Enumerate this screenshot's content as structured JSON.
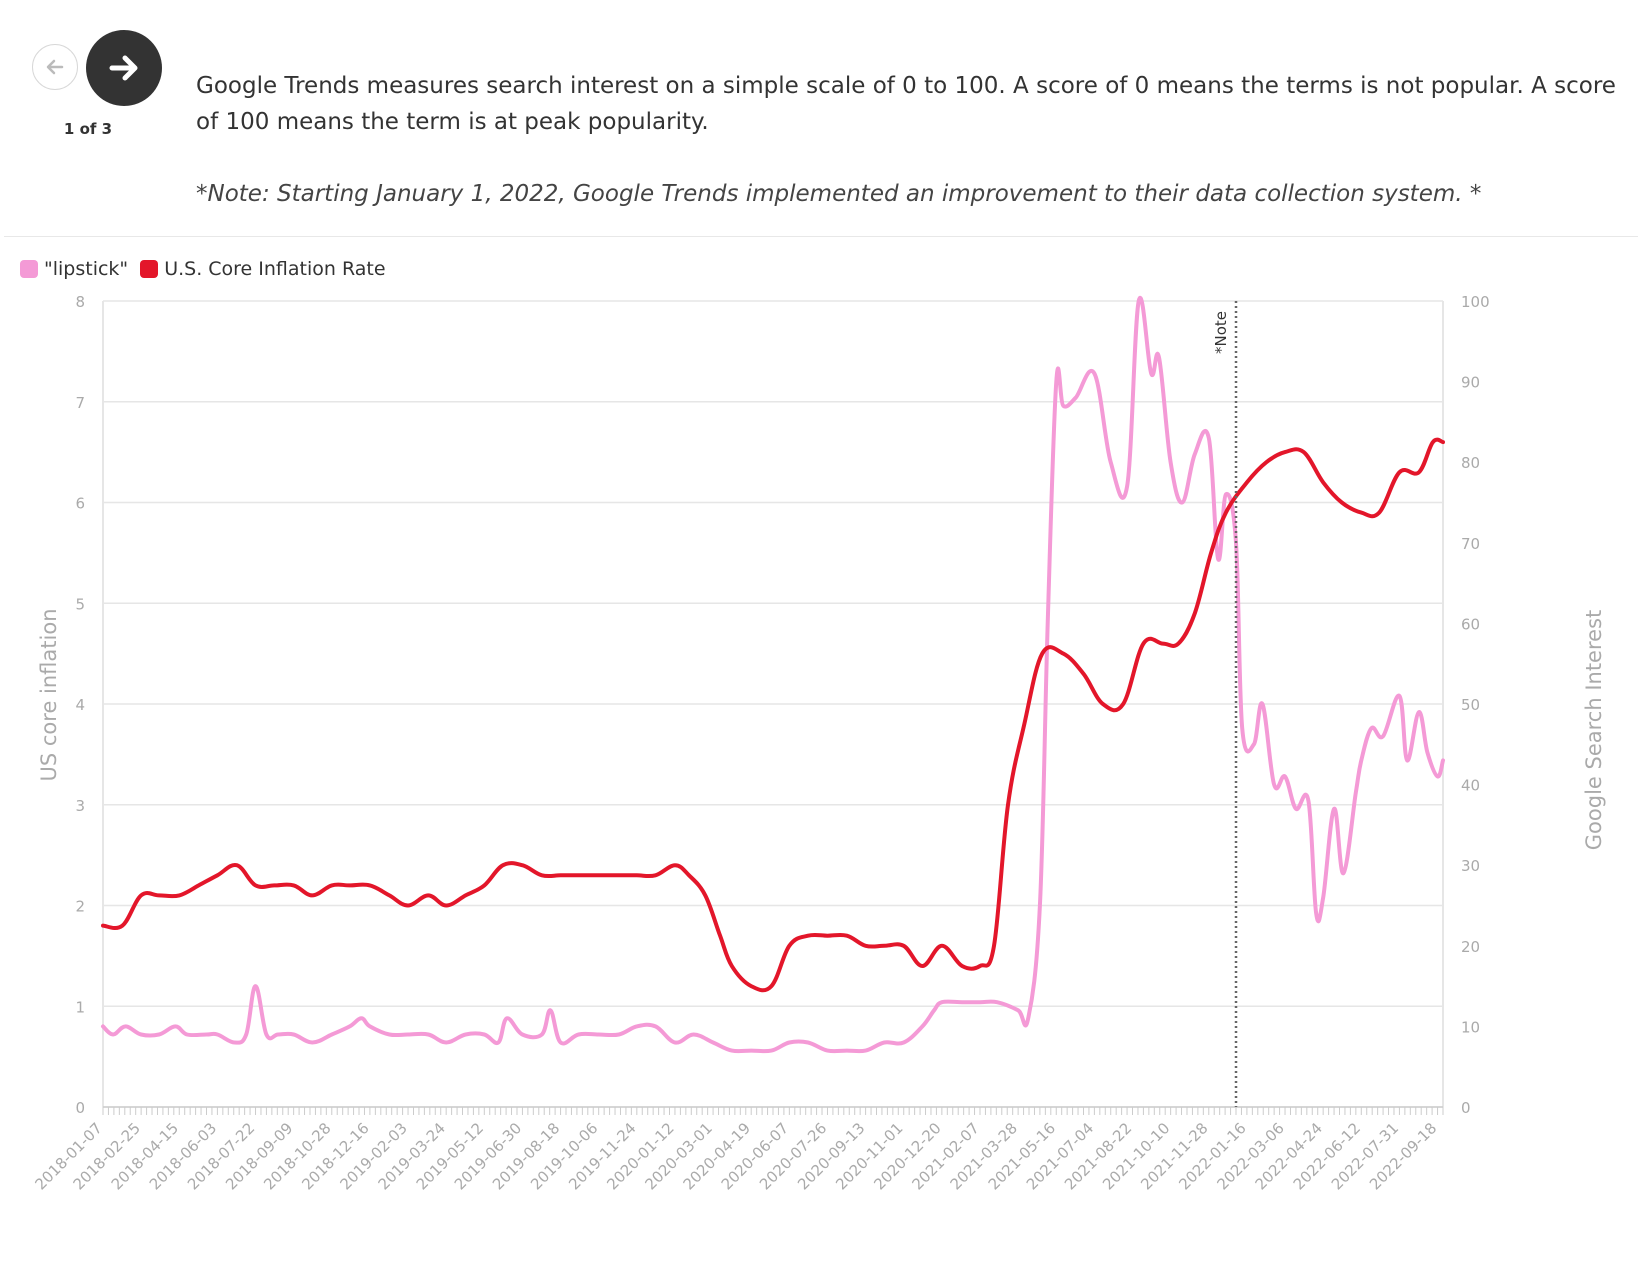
{
  "nav": {
    "counter": "1 of 3",
    "back_icon": "arrow-left-icon",
    "next_icon": "arrow-right-icon"
  },
  "description": "Google Trends measures search interest on a simple scale of 0 to 100. A score of 0 means the terms is not popular. A score of 100 means the term is at peak popularity.",
  "note": "*Note: Starting January 1, 2022, Google Trends implemented an improvement to their data collection system. *",
  "colors": {
    "lipstick": "#f49ad6",
    "inflation": "#e3162a",
    "text": "#333333",
    "grid": "#e6e6e6",
    "axis_text": "#aaaaaa",
    "note_line": "#666666"
  },
  "legend": [
    {
      "label": "\"lipstick\"",
      "color": "#f49ad6"
    },
    {
      "label": "U.S. Core Inflation Rate",
      "color": "#e3162a"
    }
  ],
  "chart_data": {
    "type": "line",
    "ylabel_left": "US core inflation",
    "ylabel_right": "Google Search Interest",
    "ylim_left": [
      0,
      8
    ],
    "ylim_right": [
      0,
      100
    ],
    "yticks_left": [
      0,
      1,
      2,
      3,
      4,
      5,
      6,
      7,
      8
    ],
    "yticks_right": [
      0,
      10,
      20,
      30,
      40,
      50,
      60,
      70,
      80,
      90,
      100
    ],
    "x_start": "2018-01-07",
    "x_end": "2022-09-25",
    "xtick_labels": [
      "2018-01-07",
      "2018-02-25",
      "2018-04-15",
      "2018-06-03",
      "2018-07-22",
      "2018-09-09",
      "2018-10-28",
      "2018-12-16",
      "2019-02-03",
      "2019-03-24",
      "2019-05-12",
      "2019-06-30",
      "2019-08-18",
      "2019-10-06",
      "2019-11-24",
      "2020-01-12",
      "2020-03-01",
      "2020-04-19",
      "2020-06-07",
      "2020-07-26",
      "2020-09-13",
      "2020-11-01",
      "2020-12-20",
      "2021-02-07",
      "2021-03-28",
      "2021-05-16",
      "2021-07-04",
      "2021-08-22",
      "2021-10-10",
      "2021-11-28",
      "2022-01-16",
      "2022-03-06",
      "2022-04-24",
      "2022-06-12",
      "2022-07-31",
      "2022-09-18"
    ],
    "annotation": {
      "label": "*Note",
      "x": "2022-01-02"
    },
    "grid": true,
    "legend_position": "top-left",
    "series": [
      {
        "name": "U.S. Core Inflation Rate",
        "axis": "left",
        "points": [
          [
            "2018-01-07",
            1.8
          ],
          [
            "2018-02-01",
            1.8
          ],
          [
            "2018-02-25",
            2.1
          ],
          [
            "2018-03-20",
            2.1
          ],
          [
            "2018-04-15",
            2.1
          ],
          [
            "2018-05-10",
            2.2
          ],
          [
            "2018-06-03",
            2.3
          ],
          [
            "2018-06-28",
            2.4
          ],
          [
            "2018-07-22",
            2.2
          ],
          [
            "2018-08-15",
            2.2
          ],
          [
            "2018-09-09",
            2.2
          ],
          [
            "2018-10-03",
            2.1
          ],
          [
            "2018-10-28",
            2.2
          ],
          [
            "2018-11-20",
            2.2
          ],
          [
            "2018-12-16",
            2.2
          ],
          [
            "2019-01-10",
            2.1
          ],
          [
            "2019-02-03",
            2.0
          ],
          [
            "2019-03-01",
            2.1
          ],
          [
            "2019-03-24",
            2.0
          ],
          [
            "2019-04-18",
            2.1
          ],
          [
            "2019-05-12",
            2.2
          ],
          [
            "2019-06-05",
            2.4
          ],
          [
            "2019-06-30",
            2.4
          ],
          [
            "2019-07-25",
            2.3
          ],
          [
            "2019-08-18",
            2.3
          ],
          [
            "2019-09-10",
            2.3
          ],
          [
            "2019-10-06",
            2.3
          ],
          [
            "2019-11-01",
            2.3
          ],
          [
            "2019-11-24",
            2.3
          ],
          [
            "2019-12-18",
            2.3
          ],
          [
            "2020-01-12",
            2.4
          ],
          [
            "2020-01-30",
            2.3
          ],
          [
            "2020-02-20",
            2.1
          ],
          [
            "2020-03-10",
            1.7
          ],
          [
            "2020-03-25",
            1.4
          ],
          [
            "2020-04-19",
            1.2
          ],
          [
            "2020-05-15",
            1.2
          ],
          [
            "2020-06-07",
            1.6
          ],
          [
            "2020-07-01",
            1.7
          ],
          [
            "2020-07-26",
            1.7
          ],
          [
            "2020-08-20",
            1.7
          ],
          [
            "2020-09-13",
            1.6
          ],
          [
            "2020-10-07",
            1.6
          ],
          [
            "2020-11-01",
            1.6
          ],
          [
            "2020-11-25",
            1.4
          ],
          [
            "2020-12-20",
            1.6
          ],
          [
            "2021-01-15",
            1.4
          ],
          [
            "2021-02-07",
            1.4
          ],
          [
            "2021-02-25",
            1.6
          ],
          [
            "2021-03-15",
            3.0
          ],
          [
            "2021-04-05",
            3.8
          ],
          [
            "2021-04-28",
            4.5
          ],
          [
            "2021-05-25",
            4.5
          ],
          [
            "2021-06-20",
            4.3
          ],
          [
            "2021-07-15",
            4.0
          ],
          [
            "2021-08-10",
            4.0
          ],
          [
            "2021-09-05",
            4.6
          ],
          [
            "2021-09-30",
            4.6
          ],
          [
            "2021-10-20",
            4.6
          ],
          [
            "2021-11-10",
            4.9
          ],
          [
            "2021-12-01",
            5.5
          ],
          [
            "2021-12-20",
            5.9
          ],
          [
            "2022-01-16",
            6.2
          ],
          [
            "2022-02-10",
            6.4
          ],
          [
            "2022-03-06",
            6.5
          ],
          [
            "2022-03-30",
            6.5
          ],
          [
            "2022-04-24",
            6.2
          ],
          [
            "2022-05-18",
            6.0
          ],
          [
            "2022-06-12",
            5.9
          ],
          [
            "2022-07-05",
            5.9
          ],
          [
            "2022-07-31",
            6.3
          ],
          [
            "2022-08-25",
            6.3
          ],
          [
            "2022-09-12",
            6.6
          ],
          [
            "2022-09-25",
            6.6
          ]
        ]
      },
      {
        "name": "\"lipstick\"",
        "axis": "right",
        "points": [
          [
            "2018-01-07",
            10
          ],
          [
            "2018-01-20",
            9
          ],
          [
            "2018-02-05",
            10
          ],
          [
            "2018-02-25",
            9
          ],
          [
            "2018-03-20",
            9
          ],
          [
            "2018-04-10",
            10
          ],
          [
            "2018-04-25",
            9
          ],
          [
            "2018-05-20",
            9
          ],
          [
            "2018-06-03",
            9
          ],
          [
            "2018-06-25",
            8
          ],
          [
            "2018-07-10",
            9
          ],
          [
            "2018-07-22",
            15
          ],
          [
            "2018-08-05",
            9
          ],
          [
            "2018-08-20",
            9
          ],
          [
            "2018-09-09",
            9
          ],
          [
            "2018-10-03",
            8
          ],
          [
            "2018-10-28",
            9
          ],
          [
            "2018-11-20",
            10
          ],
          [
            "2018-12-05",
            11
          ],
          [
            "2018-12-16",
            10
          ],
          [
            "2019-01-10",
            9
          ],
          [
            "2019-02-03",
            9
          ],
          [
            "2019-03-01",
            9
          ],
          [
            "2019-03-24",
            8
          ],
          [
            "2019-04-18",
            9
          ],
          [
            "2019-05-12",
            9
          ],
          [
            "2019-05-30",
            8
          ],
          [
            "2019-06-10",
            11
          ],
          [
            "2019-06-30",
            9
          ],
          [
            "2019-07-25",
            9
          ],
          [
            "2019-08-05",
            12
          ],
          [
            "2019-08-18",
            8
          ],
          [
            "2019-09-10",
            9
          ],
          [
            "2019-10-06",
            9
          ],
          [
            "2019-11-01",
            9
          ],
          [
            "2019-11-24",
            10
          ],
          [
            "2019-12-18",
            10
          ],
          [
            "2020-01-12",
            8
          ],
          [
            "2020-02-05",
            9
          ],
          [
            "2020-03-01",
            8
          ],
          [
            "2020-03-25",
            7
          ],
          [
            "2020-04-19",
            7
          ],
          [
            "2020-05-15",
            7
          ],
          [
            "2020-06-07",
            8
          ],
          [
            "2020-07-01",
            8
          ],
          [
            "2020-07-26",
            7
          ],
          [
            "2020-08-20",
            7
          ],
          [
            "2020-09-13",
            7
          ],
          [
            "2020-10-07",
            8
          ],
          [
            "2020-11-01",
            8
          ],
          [
            "2020-11-25",
            10
          ],
          [
            "2020-12-10",
            12
          ],
          [
            "2020-12-20",
            13
          ],
          [
            "2021-01-15",
            13
          ],
          [
            "2021-02-07",
            13
          ],
          [
            "2021-03-01",
            13
          ],
          [
            "2021-03-28",
            12
          ],
          [
            "2021-04-10",
            11
          ],
          [
            "2021-04-25",
            25
          ],
          [
            "2021-05-05",
            60
          ],
          [
            "2021-05-16",
            90
          ],
          [
            "2021-05-25",
            87
          ],
          [
            "2021-06-10",
            88
          ],
          [
            "2021-07-04",
            91
          ],
          [
            "2021-07-25",
            80
          ],
          [
            "2021-08-15",
            77
          ],
          [
            "2021-08-30",
            100
          ],
          [
            "2021-09-15",
            91
          ],
          [
            "2021-09-25",
            93
          ],
          [
            "2021-10-10",
            80
          ],
          [
            "2021-10-25",
            75
          ],
          [
            "2021-11-10",
            81
          ],
          [
            "2021-11-28",
            83
          ],
          [
            "2021-12-10",
            68
          ],
          [
            "2021-12-20",
            76
          ],
          [
            "2022-01-02",
            70
          ],
          [
            "2022-01-10",
            47
          ],
          [
            "2022-01-25",
            45
          ],
          [
            "2022-02-05",
            50
          ],
          [
            "2022-02-20",
            40
          ],
          [
            "2022-03-06",
            41
          ],
          [
            "2022-03-20",
            37
          ],
          [
            "2022-04-05",
            38
          ],
          [
            "2022-04-15",
            24
          ],
          [
            "2022-04-24",
            26
          ],
          [
            "2022-05-08",
            37
          ],
          [
            "2022-05-20",
            29
          ],
          [
            "2022-06-05",
            39
          ],
          [
            "2022-06-12",
            43
          ],
          [
            "2022-06-25",
            47
          ],
          [
            "2022-07-10",
            46
          ],
          [
            "2022-07-31",
            51
          ],
          [
            "2022-08-10",
            43
          ],
          [
            "2022-08-25",
            49
          ],
          [
            "2022-09-05",
            44
          ],
          [
            "2022-09-18",
            41
          ],
          [
            "2022-09-25",
            43
          ]
        ]
      }
    ]
  }
}
